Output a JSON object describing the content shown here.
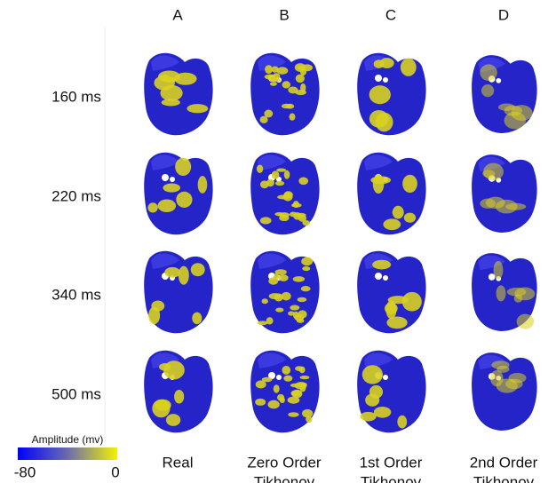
{
  "columns": [
    {
      "letter": "A",
      "caption": [
        "Real"
      ]
    },
    {
      "letter": "B",
      "caption": [
        "Zero Order",
        "Tikhonov"
      ]
    },
    {
      "letter": "C",
      "caption": [
        "1st Order",
        "Tikhonov"
      ]
    },
    {
      "letter": "D",
      "caption": [
        "2nd Order",
        "Tikhonov"
      ]
    }
  ],
  "rows": [
    "160 ms",
    "220 ms",
    "340 ms",
    "500 ms"
  ],
  "colorbar": {
    "label": "Amplitude (mv)",
    "min": -80,
    "max": 0
  }
}
